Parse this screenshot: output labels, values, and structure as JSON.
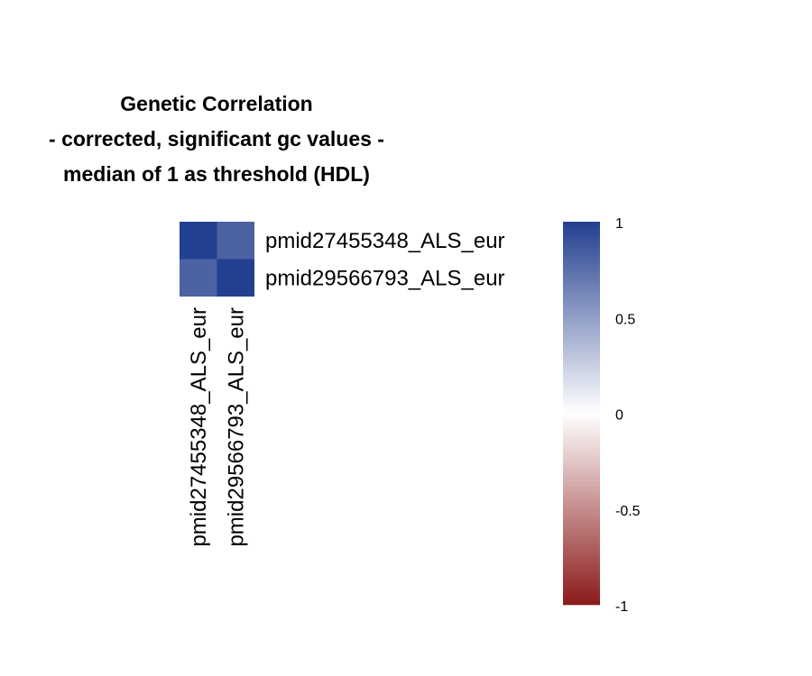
{
  "chart_data": {
    "type": "heatmap",
    "title_lines": [
      "Genetic Correlation",
      "- corrected, significant gc values -",
      "median of 1 as threshold (HDL)"
    ],
    "rows": [
      "pmid27455348_ALS_eur",
      "pmid29566793_ALS_eur"
    ],
    "cols": [
      "pmid27455348_ALS_eur",
      "pmid29566793_ALS_eur"
    ],
    "values": [
      [
        1.0,
        0.82
      ],
      [
        0.82,
        1.0
      ]
    ],
    "color_scale": {
      "min": -1,
      "max": 1,
      "low_color": "#8b1a1a",
      "mid_color": "#ffffff",
      "high_color": "#233f8f",
      "ticks": [
        {
          "value": 1,
          "label": "1"
        },
        {
          "value": 0.5,
          "label": "0.5"
        },
        {
          "value": 0,
          "label": "0"
        },
        {
          "value": -0.5,
          "label": "-0.5"
        },
        {
          "value": -1,
          "label": "-1"
        }
      ]
    },
    "legend_placement": "right",
    "grid": false
  }
}
